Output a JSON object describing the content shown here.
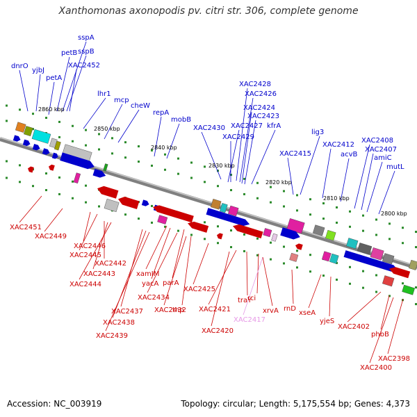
{
  "title": "Xanthomonas axonopodis pv. citri str. 306, complete genome",
  "footer": {
    "accession": "Accession: NC_003919",
    "topology": "Topology: circular; Length: 5,175,554 bp; Genes: 4,373"
  },
  "colors": {
    "forward": "#0000cc",
    "reverse": "#cc0000",
    "pseudo": "#e699e6",
    "backbone": "#808080",
    "tick": "#2a8a2a"
  },
  "kbp_marks": [
    "2860 kbp",
    "2850 kbp",
    "2840 kbp",
    "2830 kbp",
    "2820 kbp",
    "2810 kbp",
    "2800 kbp"
  ],
  "top_labels": [
    "dnrO",
    "yjbJ",
    "petA",
    "petB",
    "sspA",
    "sspB",
    "XAC2452",
    "lhr1",
    "mcp",
    "cheW",
    "repA",
    "mobB",
    "XAC2430",
    "XAC2428",
    "XAC2426",
    "XAC2424",
    "XAC2427",
    "XAC2423",
    "XAC2429",
    "kfrA",
    "lig3",
    "XAC2415",
    "XAC2412",
    "acvB",
    "XAC2408",
    "XAC2407",
    "amiC",
    "mutL"
  ],
  "bottom_labels": [
    "XAC2451",
    "XAC2449",
    "XAC2446",
    "XAC2445",
    "XAC2442",
    "XAC2443",
    "XAC2444",
    "xamIM",
    "yacA",
    "parA",
    "XAC2434",
    "tnp",
    "XAC2432",
    "XAC2425",
    "XAC2437",
    "XAC2438",
    "XAC2439",
    "XAC2421",
    "traY",
    "rci",
    "XAC2420",
    "XAC2417",
    "xrvA",
    "rnD",
    "xseA",
    "yjeS",
    "XAC2402",
    "phbB",
    "XAC2398",
    "XAC2400"
  ]
}
